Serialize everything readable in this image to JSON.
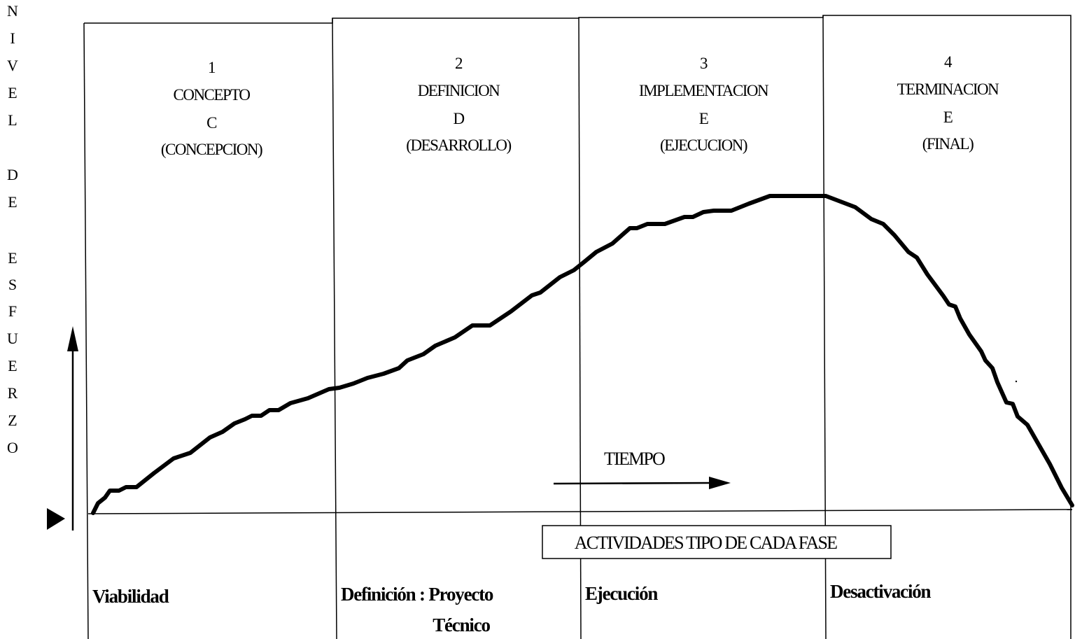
{
  "y_axis_label": [
    "N",
    "I",
    "V",
    "E",
    "L",
    "",
    "D",
    "E",
    "",
    "E",
    "S",
    "F",
    "U",
    "E",
    "R",
    "Z",
    "O"
  ],
  "phases": [
    {
      "number": "1",
      "name": "CONCEPTO",
      "letter": "C",
      "desc": "(CONCEPCION)"
    },
    {
      "number": "2",
      "name": "DEFINICION",
      "letter": "D",
      "desc": "(DESARROLLO)"
    },
    {
      "number": "3",
      "name": "IMPLEMENTACION",
      "letter": "E",
      "desc": "(EJECUCION)"
    },
    {
      "number": "4",
      "name": "TERMINACION",
      "letter": "E",
      "desc": "(FINAL)"
    }
  ],
  "time_label": "TIEMPO",
  "activities_title": "ACTIVIDADES TIPO DE CADA FASE",
  "activities": [
    {
      "line1": "Viabilidad",
      "line2": ""
    },
    {
      "line1": "Definición : Proyecto",
      "line2": "Técnico"
    },
    {
      "line1": "Ejecución",
      "line2": ""
    },
    {
      "line1": "Desactivación",
      "line2": ""
    }
  ]
}
